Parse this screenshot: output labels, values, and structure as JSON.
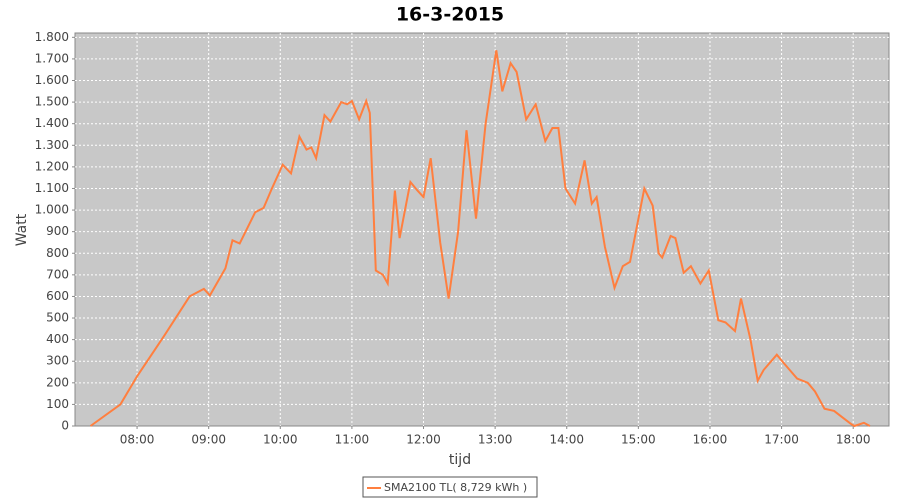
{
  "chart_data": {
    "type": "line",
    "title": "16-3-2015",
    "x_label": "tijd",
    "y_label": "Watt",
    "x": [
      "07:21",
      "07:46",
      "08:00",
      "08:23",
      "08:44",
      "08:56",
      "09:01",
      "09:14",
      "09:20",
      "09:26",
      "09:39",
      "09:46",
      "09:53",
      "10:02",
      "10:09",
      "10:16",
      "10:22",
      "10:26",
      "10:30",
      "10:37",
      "10:42",
      "10:51",
      "10:56",
      "11:00",
      "11:06",
      "11:12",
      "11:15",
      "11:20",
      "11:26",
      "11:30",
      "11:36",
      "11:40",
      "11:49",
      "11:55",
      "12:00",
      "12:06",
      "12:14",
      "12:21",
      "12:29",
      "12:36",
      "12:44",
      "12:52",
      "13:01",
      "13:06",
      "13:13",
      "13:18",
      "13:26",
      "13:34",
      "13:42",
      "13:48",
      "13:53",
      "13:59",
      "14:07",
      "14:15",
      "14:21",
      "14:25",
      "14:32",
      "14:40",
      "14:47",
      "14:53",
      "15:05",
      "15:12",
      "15:17",
      "15:20",
      "15:27",
      "15:31",
      "15:38",
      "15:44",
      "15:52",
      "15:59",
      "16:07",
      "16:13",
      "16:21",
      "16:26",
      "16:34",
      "16:40",
      "16:45",
      "16:56",
      "17:02",
      "17:13",
      "17:22",
      "17:28",
      "17:36",
      "17:44",
      "17:51",
      "17:58",
      "18:01",
      "18:09",
      "18:14"
    ],
    "series": [
      {
        "name": "SMA2100 TL( 8,729 kWh )",
        "color": "#ff7f3f",
        "values": [
          0,
          100,
          230,
          420,
          600,
          635,
          605,
          730,
          860,
          845,
          990,
          1010,
          1100,
          1210,
          1170,
          1340,
          1280,
          1290,
          1240,
          1440,
          1410,
          1500,
          1490,
          1505,
          1420,
          1505,
          1450,
          720,
          700,
          660,
          1090,
          870,
          1130,
          1090,
          1060,
          1240,
          850,
          590,
          900,
          1370,
          960,
          1400,
          1740,
          1550,
          1680,
          1640,
          1420,
          1490,
          1320,
          1380,
          1380,
          1100,
          1030,
          1230,
          1030,
          1060,
          830,
          640,
          740,
          760,
          1100,
          1020,
          800,
          780,
          880,
          870,
          710,
          740,
          660,
          720,
          490,
          480,
          440,
          590,
          400,
          210,
          260,
          330,
          290,
          220,
          200,
          160,
          80,
          70,
          40,
          10,
          0,
          15,
          0
        ]
      }
    ],
    "xlim": [
      "07:08",
      "18:30"
    ],
    "xticks": [
      "08:00",
      "09:00",
      "10:00",
      "11:00",
      "12:00",
      "13:00",
      "14:00",
      "15:00",
      "16:00",
      "17:00",
      "18:00"
    ],
    "ylim": [
      0,
      1820
    ],
    "yticks": [
      0,
      100,
      200,
      300,
      400,
      500,
      600,
      700,
      800,
      900,
      {
        "value": 1000,
        "label": "1.000"
      },
      {
        "value": 1100,
        "label": "1.100"
      },
      {
        "value": 1200,
        "label": "1.200"
      },
      {
        "value": 1300,
        "label": "1.300"
      },
      {
        "value": 1400,
        "label": "1.400"
      },
      {
        "value": 1500,
        "label": "1.500"
      },
      {
        "value": 1600,
        "label": "1.600"
      },
      {
        "value": 1700,
        "label": "1.700"
      },
      {
        "value": 1800,
        "label": "1.800"
      }
    ],
    "grid": true,
    "legend": "bottom"
  }
}
